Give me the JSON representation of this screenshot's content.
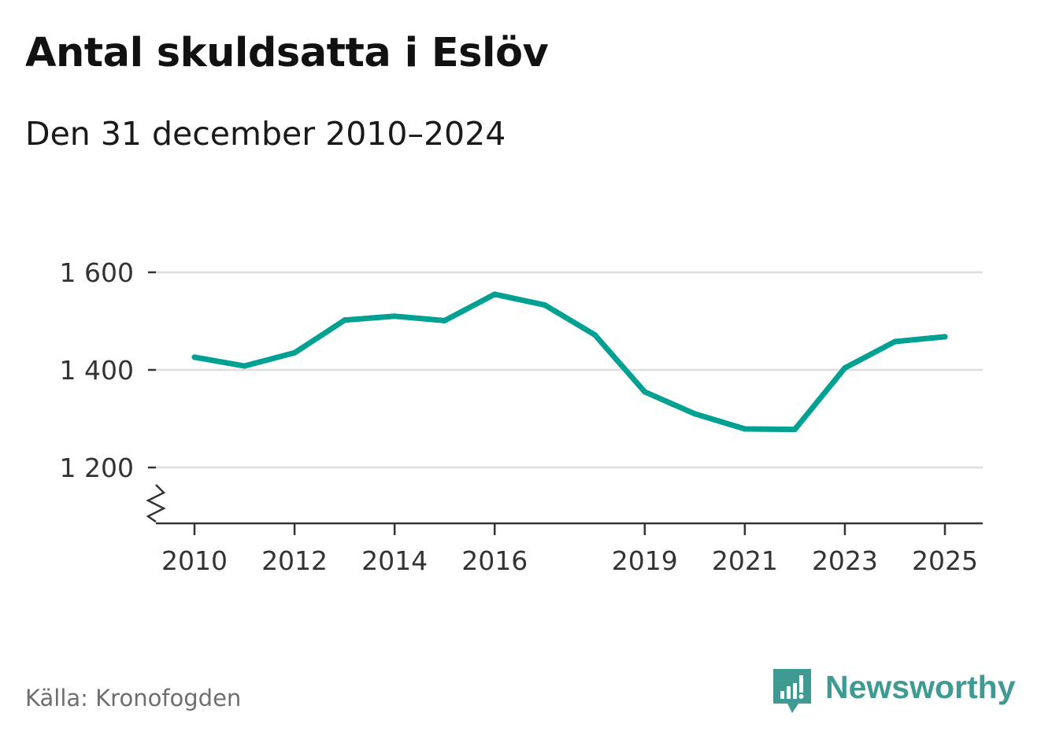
{
  "title": "Antal skuldsatta i Eslöv",
  "subtitle": "Den 31 december 2010–2024",
  "source": "Källa: Kronofogden",
  "brand": {
    "name": "Newsworthy",
    "icon": "newsworthy-logo-icon",
    "color": "#3e9a92"
  },
  "colors": {
    "line": "#00a193",
    "grid": "#dddddd",
    "axis": "#333333"
  },
  "chart_data": {
    "type": "line",
    "title": "Antal skuldsatta i Eslöv",
    "subtitle": "Den 31 december 2010–2024",
    "xlabel": "",
    "ylabel": "",
    "x_ticks": [
      "2010",
      "2012",
      "2014",
      "2016",
      "2019",
      "2021",
      "2023",
      "2025"
    ],
    "y_ticks": [
      "1 200",
      "1 400",
      "1 600"
    ],
    "ylim": [
      1090,
      1600
    ],
    "y_axis_break": true,
    "grid": "horizontal",
    "series": [
      {
        "x": [
          2010,
          2011,
          2012,
          2013,
          2014,
          2015,
          2016,
          2017,
          2018,
          2019,
          2020,
          2021,
          2022,
          2023,
          2024,
          2025
        ],
        "values": [
          1426,
          1408,
          1435,
          1502,
          1510,
          1501,
          1555,
          1533,
          1472,
          1355,
          1310,
          1279,
          1278,
          1404,
          1458,
          1468
        ]
      }
    ]
  }
}
